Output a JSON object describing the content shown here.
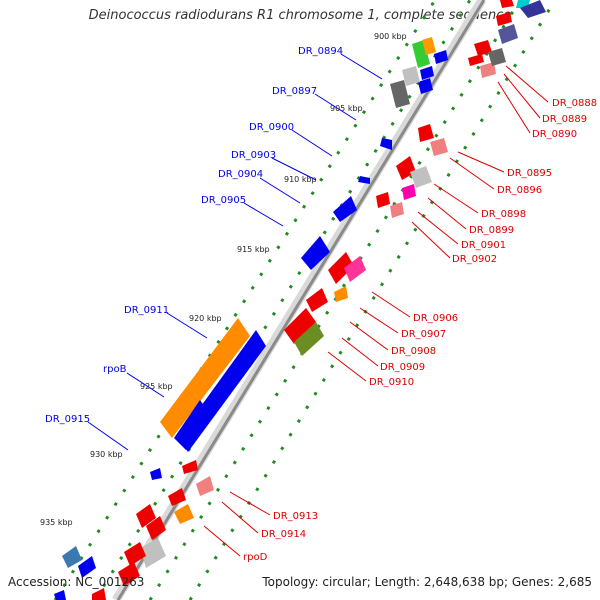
{
  "title": "Deinococcus radiodurans R1 chromosome 1, complete sequence",
  "accession_text": "Accession: NC_001263",
  "topology_text": "Topology: circular; Length: 2,648,638 bp; Genes: 2,685",
  "ticks": [
    "900 kbp",
    "905 kbp",
    "910 kbp",
    "915 kbp",
    "920 kbp",
    "925 kbp",
    "930 kbp",
    "935 kbp"
  ],
  "genes_left": [
    "DR_0894",
    "DR_0897",
    "DR_0900",
    "DR_0903",
    "DR_0904",
    "DR_0905",
    "DR_0911",
    "rpoB",
    "DR_0915"
  ],
  "genes_right": [
    "DR_0888",
    "DR_0889",
    "DR_0890",
    "DR_0895",
    "DR_0896",
    "DR_0898",
    "DR_0899",
    "DR_0901",
    "DR_0902",
    "DR_0906",
    "DR_0907",
    "DR_0908",
    "DR_0909",
    "DR_0910",
    "DR_0913",
    "DR_0914",
    "rpoD"
  ],
  "colors": {
    "forward": "#0000ee",
    "reverse": "#dd0000",
    "backbone": "#808080",
    "tick_dots": "#228b22"
  }
}
